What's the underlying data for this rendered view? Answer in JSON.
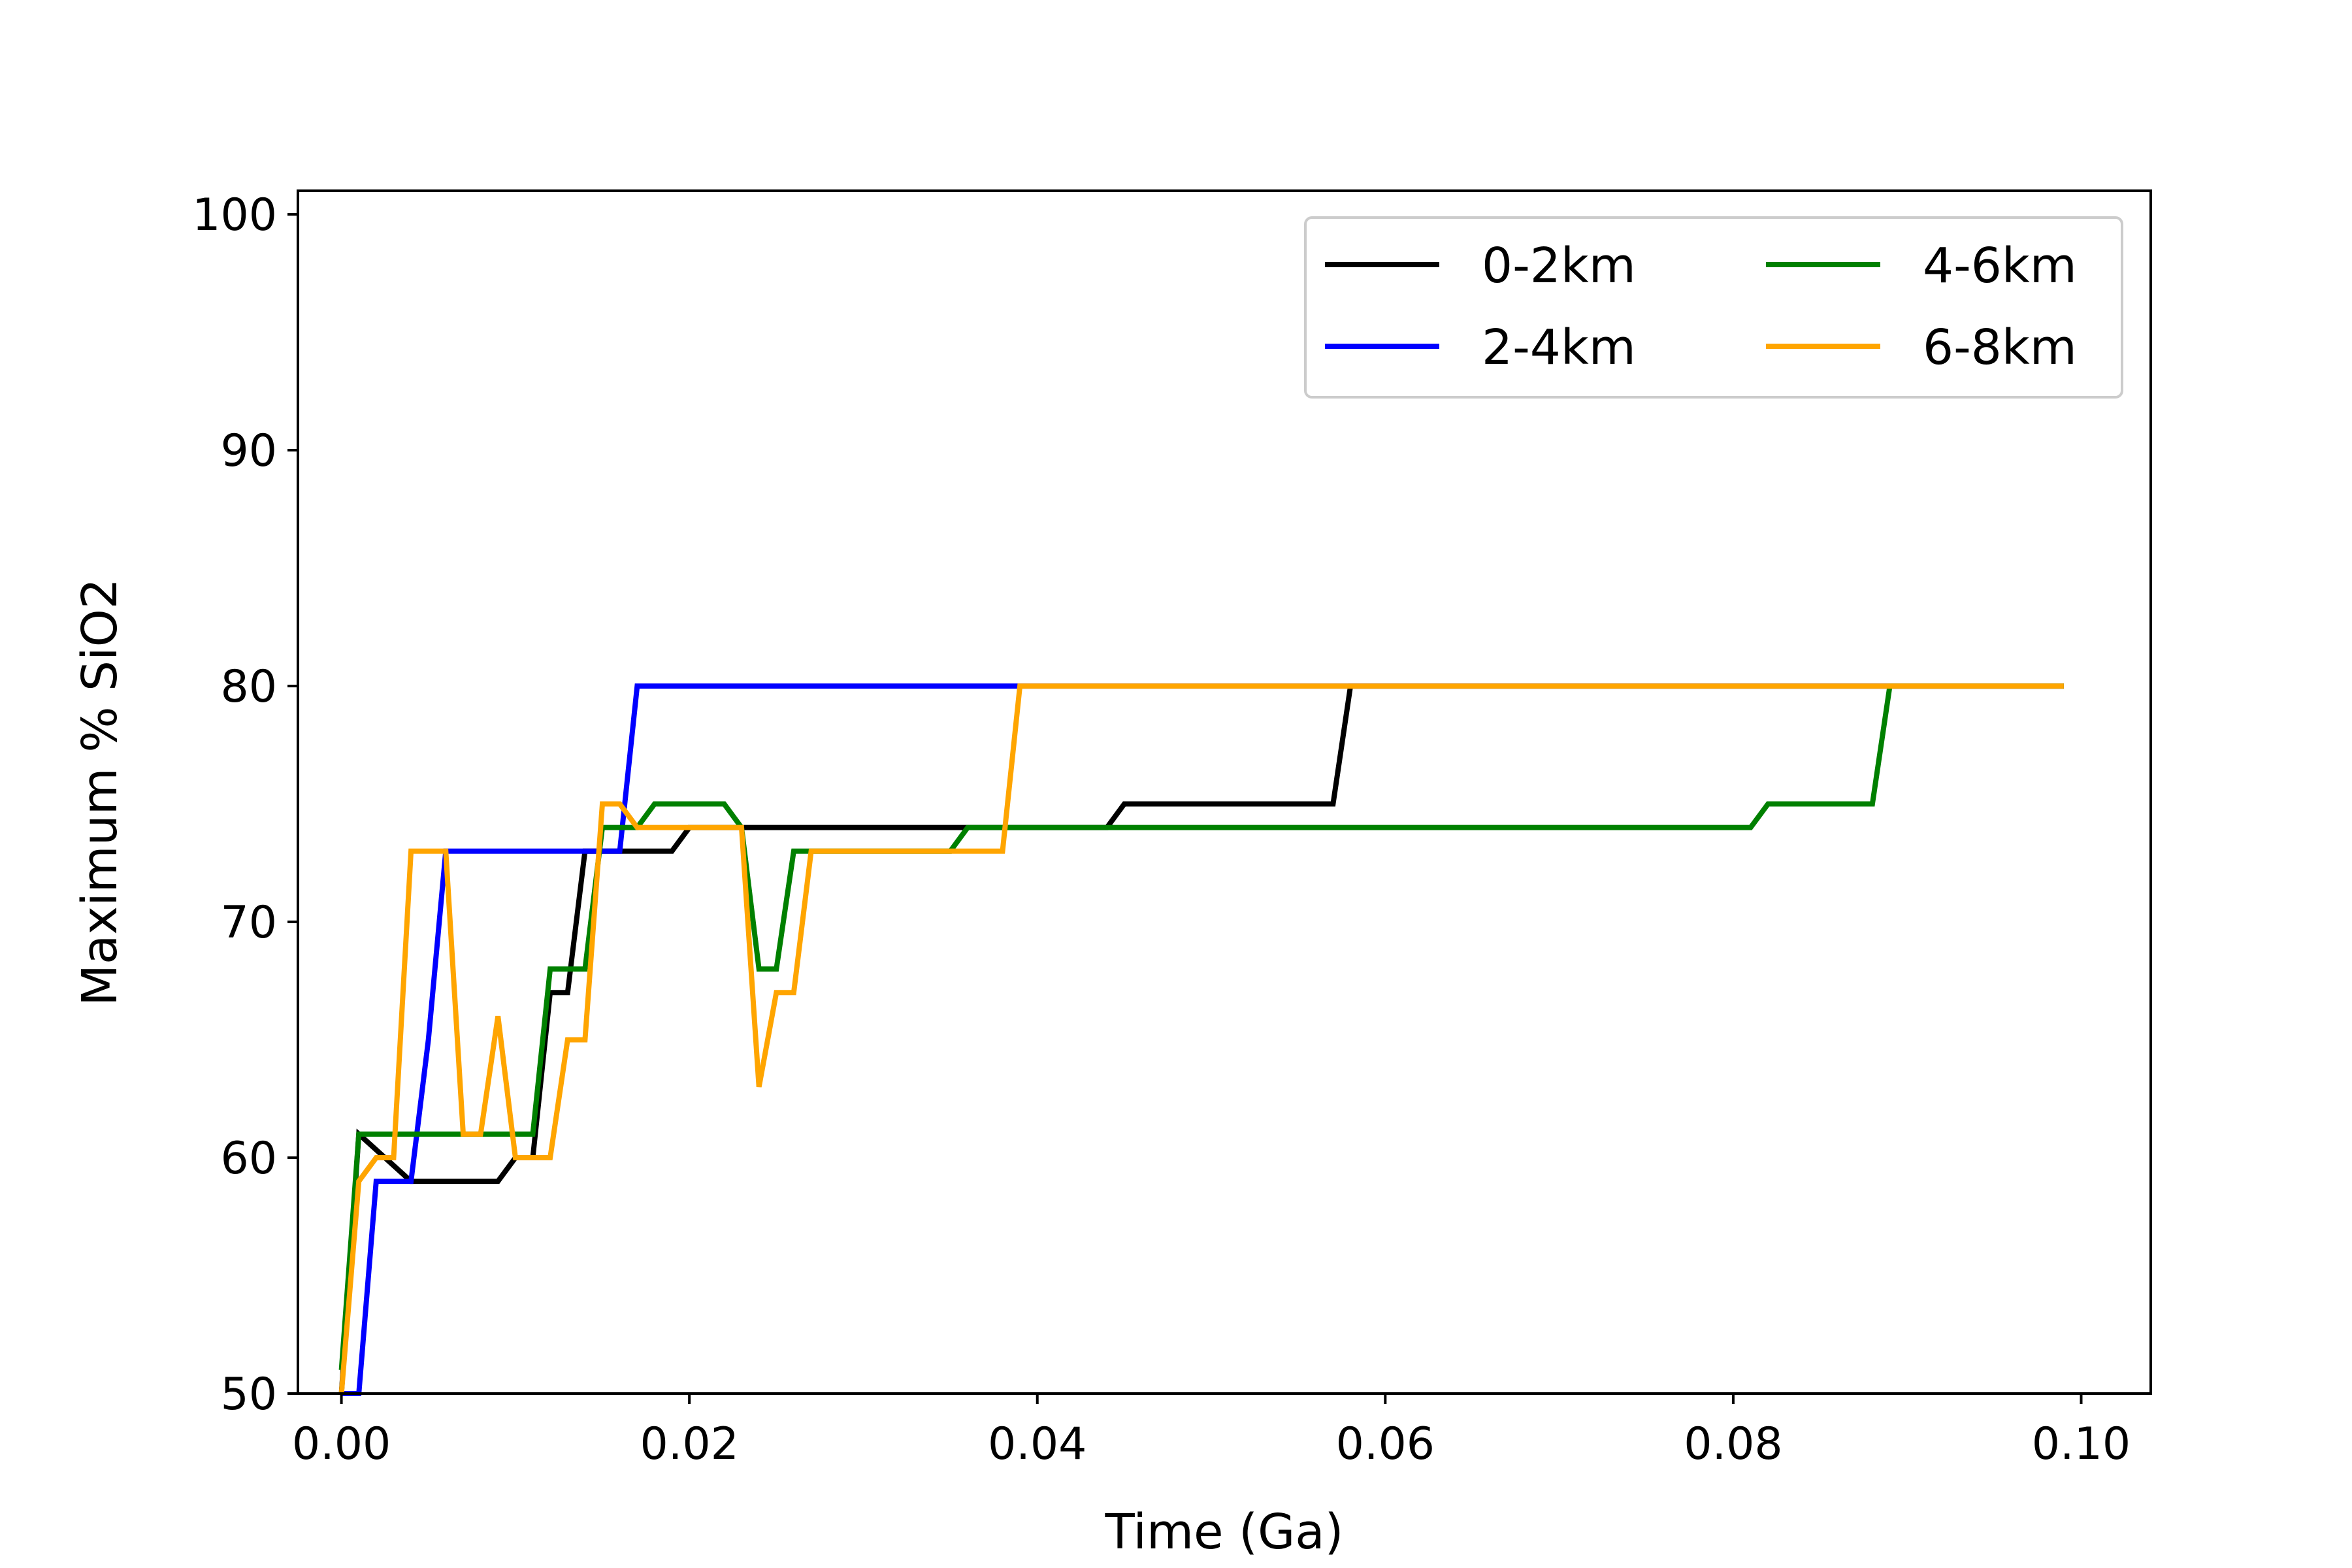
{
  "chart_data": {
    "type": "line",
    "xlabel": "Time (Ga)",
    "ylabel": "Maximum % SiO2",
    "xlim": [
      -0.0025,
      0.104
    ],
    "ylim": [
      50,
      101
    ],
    "xticks": [
      "0.00",
      "0.02",
      "0.04",
      "0.06",
      "0.08",
      "0.10"
    ],
    "xtick_values": [
      0,
      0.02,
      0.04,
      0.06,
      0.08,
      0.1
    ],
    "yticks": [
      "50",
      "60",
      "70",
      "80",
      "90",
      "100"
    ],
    "ytick_values": [
      50,
      60,
      70,
      80,
      90,
      100
    ],
    "grid": false,
    "legend_position": "top-right",
    "legend_columns": 2,
    "series": [
      {
        "name": "0-2km",
        "color": "#000000",
        "points": [
          [
            0.0,
            50
          ],
          [
            0.001,
            61
          ],
          [
            0.004,
            59
          ],
          [
            0.009,
            59
          ],
          [
            0.01,
            60
          ],
          [
            0.011,
            60
          ],
          [
            0.012,
            67
          ],
          [
            0.013,
            67
          ],
          [
            0.014,
            73
          ],
          [
            0.019,
            73
          ],
          [
            0.02,
            74
          ],
          [
            0.044,
            74
          ],
          [
            0.045,
            75
          ],
          [
            0.057,
            75
          ],
          [
            0.058,
            80
          ],
          [
            0.099,
            80
          ]
        ]
      },
      {
        "name": "2-4km",
        "color": "#0000ff",
        "points": [
          [
            0.0,
            50
          ],
          [
            0.001,
            50
          ],
          [
            0.002,
            59
          ],
          [
            0.004,
            59
          ],
          [
            0.005,
            65
          ],
          [
            0.006,
            73
          ],
          [
            0.016,
            73
          ],
          [
            0.017,
            80
          ],
          [
            0.099,
            80
          ]
        ]
      },
      {
        "name": "4-6km",
        "color": "#008000",
        "points": [
          [
            0.0,
            51
          ],
          [
            0.001,
            61
          ],
          [
            0.011,
            61
          ],
          [
            0.012,
            68
          ],
          [
            0.014,
            68
          ],
          [
            0.015,
            74
          ],
          [
            0.017,
            74
          ],
          [
            0.018,
            75
          ],
          [
            0.022,
            75
          ],
          [
            0.023,
            74
          ],
          [
            0.024,
            68
          ],
          [
            0.025,
            68
          ],
          [
            0.026,
            73
          ],
          [
            0.035,
            73
          ],
          [
            0.036,
            74
          ],
          [
            0.081,
            74
          ],
          [
            0.082,
            75
          ],
          [
            0.088,
            75
          ],
          [
            0.089,
            80
          ],
          [
            0.099,
            80
          ]
        ]
      },
      {
        "name": "6-8km",
        "color": "#ffa500",
        "points": [
          [
            0.0,
            50
          ],
          [
            0.001,
            59
          ],
          [
            0.002,
            60
          ],
          [
            0.003,
            60
          ],
          [
            0.004,
            73
          ],
          [
            0.006,
            73
          ],
          [
            0.007,
            61
          ],
          [
            0.008,
            61
          ],
          [
            0.009,
            66
          ],
          [
            0.01,
            60
          ],
          [
            0.012,
            60
          ],
          [
            0.013,
            65
          ],
          [
            0.014,
            65
          ],
          [
            0.015,
            75
          ],
          [
            0.016,
            75
          ],
          [
            0.017,
            74
          ],
          [
            0.023,
            74
          ],
          [
            0.024,
            63
          ],
          [
            0.025,
            67
          ],
          [
            0.026,
            67
          ],
          [
            0.027,
            73
          ],
          [
            0.038,
            73
          ],
          [
            0.039,
            80
          ],
          [
            0.099,
            80
          ]
        ]
      }
    ]
  }
}
